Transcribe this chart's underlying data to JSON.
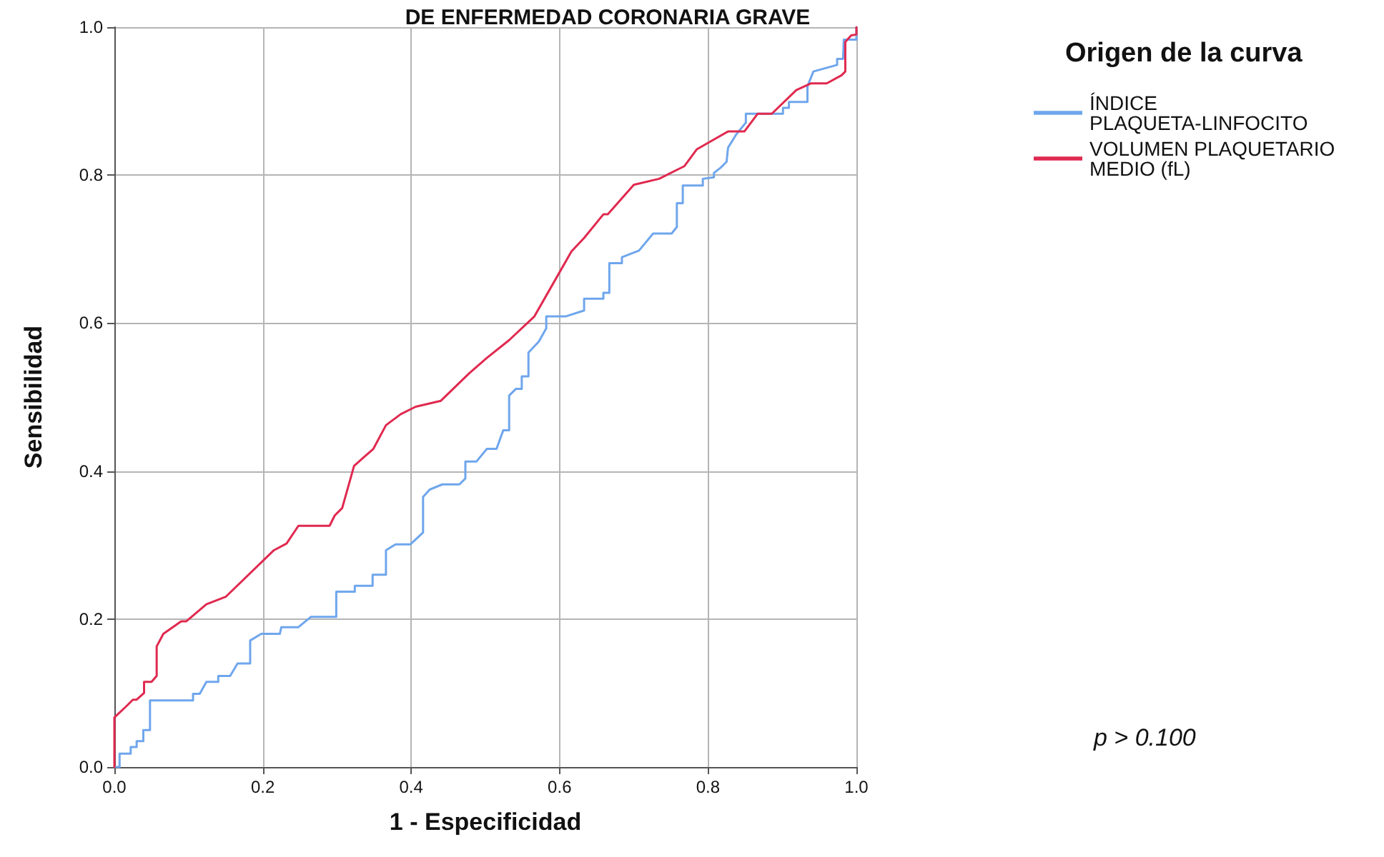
{
  "chart_data": {
    "type": "line",
    "title": "DE ENFERMEDAD CORONARIA GRAVE",
    "xlabel": "1 - Especificidad",
    "ylabel": "Sensibilidad",
    "legend_title": "Origen de la curva",
    "legend": "right",
    "grid": true,
    "marker": "none",
    "line_style": "solid",
    "xlim": [
      0,
      1
    ],
    "ylim": [
      0,
      1
    ],
    "xticks": [
      {
        "value": 0,
        "label": "0.0"
      },
      0.2,
      0.4,
      0.6,
      0.8,
      {
        "value": 1,
        "label": "1.0"
      }
    ],
    "yticks": [
      {
        "value": 0,
        "label": "0.0"
      },
      0.2,
      0.4,
      0.6,
      0.8,
      {
        "value": 1,
        "label": "1.0"
      }
    ],
    "annotations": [
      "p > 0.100"
    ],
    "series": [
      {
        "name": "ÍNDICE PLAQUETA-LINFOCITO",
        "color": "#6fa6ec",
        "x": [
          0,
          0.007,
          0.007,
          0.022,
          0.022,
          0.03,
          0.03,
          0.039,
          0.039,
          0.048,
          0.048,
          0.106,
          0.106,
          0.115,
          0.124,
          0.14,
          0.14,
          0.156,
          0.166,
          0.183,
          0.183,
          0.198,
          0.223,
          0.225,
          0.248,
          0.265,
          0.299,
          0.299,
          0.324,
          0.324,
          0.348,
          0.348,
          0.366,
          0.366,
          0.379,
          0.399,
          0.416,
          0.416,
          0.425,
          0.442,
          0.465,
          0.473,
          0.473,
          0.488,
          0.502,
          0.515,
          0.524,
          0.532,
          0.532,
          0.541,
          0.549,
          0.549,
          0.558,
          0.558,
          0.572,
          0.582,
          0.582,
          0.608,
          0.633,
          0.633,
          0.659,
          0.659,
          0.667,
          0.667,
          0.684,
          0.684,
          0.707,
          0.726,
          0.751,
          0.758,
          0.758,
          0.766,
          0.766,
          0.793,
          0.793,
          0.808,
          0.808,
          0.817,
          0.825,
          0.827,
          0.838,
          0.851,
          0.851,
          0.901,
          0.901,
          0.909,
          0.909,
          0.934,
          0.934,
          0.942,
          0.974,
          0.974,
          0.982,
          0.983,
          1,
          1
        ],
        "values": [
          0,
          0,
          0.018,
          0.018,
          0.027,
          0.027,
          0.035,
          0.035,
          0.05,
          0.05,
          0.09,
          0.09,
          0.099,
          0.099,
          0.115,
          0.115,
          0.123,
          0.123,
          0.14,
          0.14,
          0.171,
          0.18,
          0.18,
          0.189,
          0.189,
          0.203,
          0.203,
          0.237,
          0.237,
          0.245,
          0.245,
          0.26,
          0.26,
          0.293,
          0.301,
          0.301,
          0.317,
          0.365,
          0.375,
          0.382,
          0.382,
          0.39,
          0.413,
          0.413,
          0.43,
          0.43,
          0.455,
          0.455,
          0.502,
          0.511,
          0.511,
          0.528,
          0.528,
          0.56,
          0.575,
          0.593,
          0.609,
          0.609,
          0.617,
          0.633,
          0.633,
          0.641,
          0.641,
          0.681,
          0.681,
          0.689,
          0.698,
          0.721,
          0.721,
          0.73,
          0.762,
          0.762,
          0.786,
          0.786,
          0.795,
          0.797,
          0.803,
          0.81,
          0.818,
          0.837,
          0.855,
          0.871,
          0.883,
          0.883,
          0.891,
          0.891,
          0.899,
          0.899,
          0.92,
          0.94,
          0.949,
          0.957,
          0.957,
          0.983,
          0.983,
          1
        ]
      },
      {
        "name": "VOLUMEN PLAQUETARIO MEDIO (fL)",
        "color": "#e0294f",
        "x": [
          0,
          0,
          0.017,
          0.025,
          0.03,
          0.04,
          0.04,
          0.05,
          0.057,
          0.057,
          0.066,
          0.09,
          0.097,
          0.124,
          0.15,
          0.215,
          0.232,
          0.248,
          0.29,
          0.297,
          0.307,
          0.323,
          0.349,
          0.366,
          0.386,
          0.406,
          0.44,
          0.478,
          0.502,
          0.532,
          0.566,
          0.616,
          0.633,
          0.659,
          0.665,
          0.7,
          0.734,
          0.768,
          0.785,
          0.827,
          0.849,
          0.867,
          0.886,
          0.919,
          0.939,
          0.96,
          0.98,
          0.985,
          0.985,
          0.993,
          1,
          1
        ],
        "values": [
          0,
          0.067,
          0.083,
          0.091,
          0.091,
          0.1,
          0.115,
          0.115,
          0.123,
          0.163,
          0.18,
          0.197,
          0.197,
          0.22,
          0.23,
          0.293,
          0.302,
          0.326,
          0.326,
          0.34,
          0.35,
          0.407,
          0.43,
          0.462,
          0.477,
          0.487,
          0.495,
          0.532,
          0.553,
          0.577,
          0.609,
          0.697,
          0.715,
          0.747,
          0.747,
          0.787,
          0.795,
          0.812,
          0.835,
          0.859,
          0.859,
          0.883,
          0.883,
          0.915,
          0.924,
          0.924,
          0.935,
          0.94,
          0.98,
          0.989,
          0.99,
          1
        ]
      }
    ]
  }
}
